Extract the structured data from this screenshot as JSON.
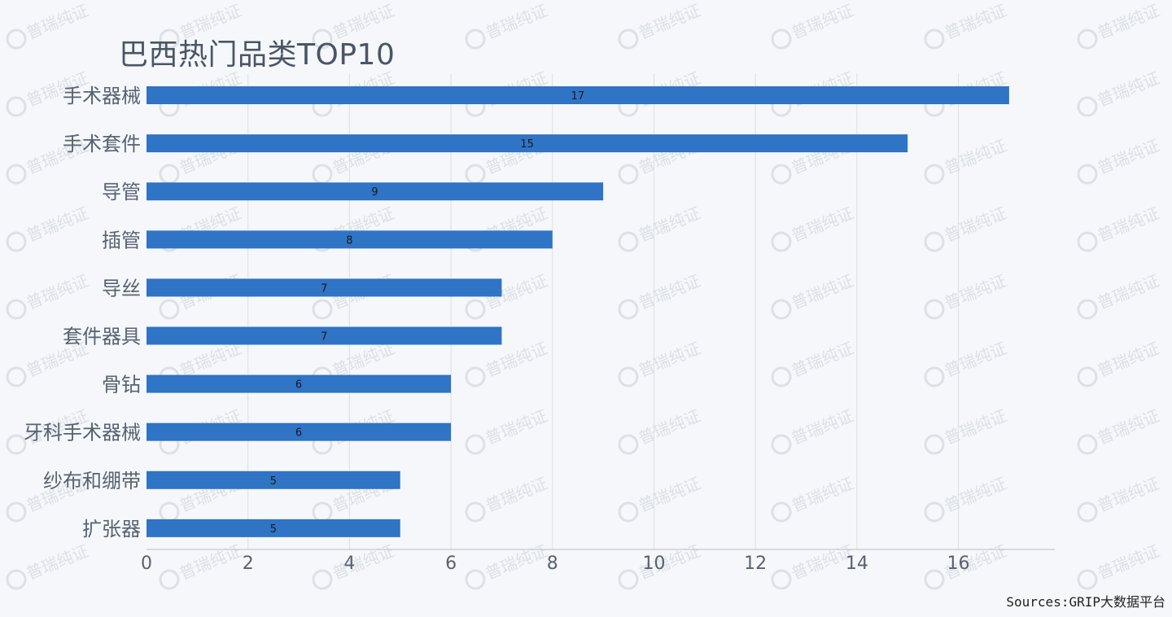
{
  "title": "巴西热门品类TOP10",
  "source": "Sources:GRIP大数据平台",
  "watermark": "普瑞纯证",
  "colors": {
    "bar": "#2f74c5",
    "grid": "#dcdfe4",
    "axis": "#b9bec6",
    "background": "#f5f7fa"
  },
  "chart_data": {
    "type": "bar",
    "orientation": "horizontal",
    "categories": [
      "手术器械",
      "手术套件",
      "导管",
      "插管",
      "导丝",
      "套件器具",
      "骨钻",
      "牙科手术器械",
      "纱布和绷带",
      "扩张器"
    ],
    "values": [
      17,
      15,
      9,
      8,
      7,
      7,
      6,
      6,
      5,
      5
    ],
    "xticks": [
      0,
      2,
      4,
      6,
      8,
      10,
      12,
      14,
      16
    ],
    "xlim": [
      0,
      17.9
    ],
    "grid": "vertical",
    "data_labels": true,
    "title": "巴西热门品类TOP10"
  }
}
